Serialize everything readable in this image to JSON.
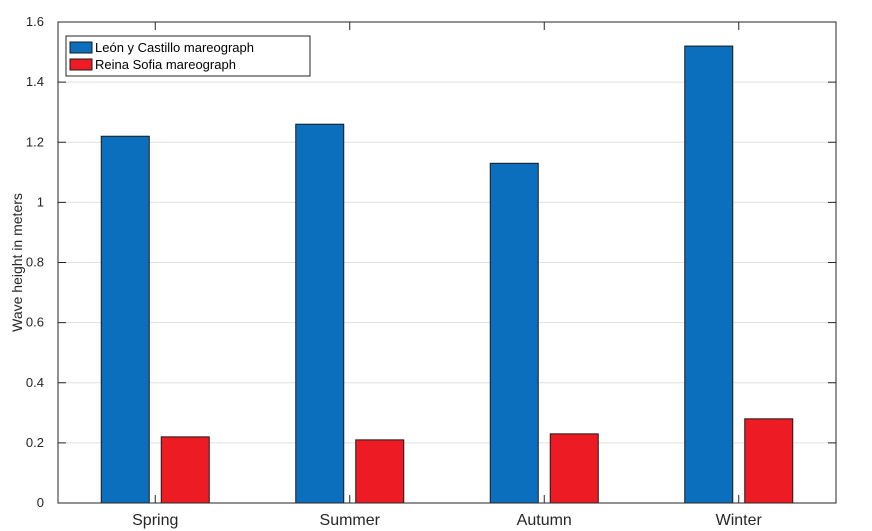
{
  "chart_data": {
    "type": "bar",
    "title": "",
    "xlabel": "",
    "ylabel": "Wave height in meters",
    "categories": [
      "Spring",
      "Summer",
      "Autumn",
      "Winter"
    ],
    "ylim": [
      0,
      1.6
    ],
    "yticks": [
      0,
      0.2,
      0.4,
      0.6,
      0.8,
      1,
      1.2,
      1.4,
      1.6
    ],
    "ytick_labels": [
      "0",
      "0.2",
      "0.4",
      "0.6",
      "0.8",
      "1",
      "1.2",
      "1.4",
      "1.6"
    ],
    "grid": true,
    "legend_position": "top-left",
    "series": [
      {
        "name": "León y Castillo mareograph",
        "color": "#0b6fbd",
        "values": [
          1.22,
          1.26,
          1.13,
          1.52
        ]
      },
      {
        "name": "Reina Sofia mareograph",
        "color": "#ed1c24",
        "values": [
          0.22,
          0.21,
          0.23,
          0.28
        ]
      }
    ]
  }
}
